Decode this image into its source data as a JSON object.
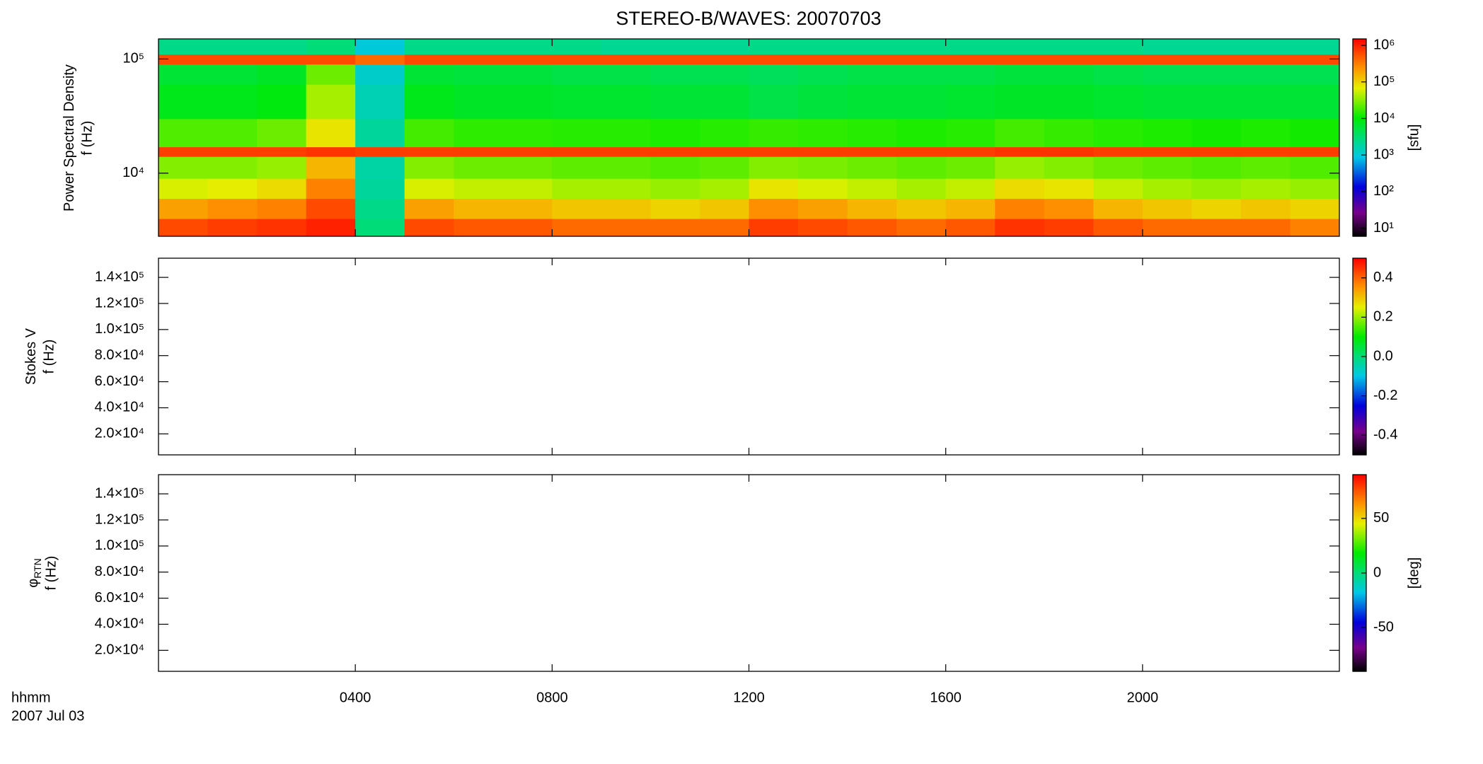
{
  "chart_data": [
    {
      "type": "heatmap",
      "title": "STEREO-B/WAVES: 20070703",
      "ylabel": "Power Spectral Density",
      "ylabel2": "f (Hz)",
      "zlabel": "[sfu]",
      "colormap": "rainbow",
      "ylog": true,
      "zlog": true,
      "xlim": [
        0,
        24
      ],
      "xticks": [
        4,
        8,
        12,
        16,
        20
      ],
      "ylim": [
        2800,
        150000
      ],
      "yticks": [
        {
          "value": 10000,
          "label": "10⁴"
        },
        {
          "value": 100000,
          "label": "10⁵"
        }
      ],
      "zlim": [
        6,
        1500000
      ],
      "zticks": [
        {
          "value": 10,
          "label": "10¹"
        },
        {
          "value": 100,
          "label": "10²"
        },
        {
          "value": 1000,
          "label": "10³"
        },
        {
          "value": 10000,
          "label": "10⁴"
        },
        {
          "value": 100000,
          "label": "10⁵"
        },
        {
          "value": 1000000,
          "label": "10⁶"
        }
      ],
      "xbins": [
        0,
        1,
        2,
        3,
        4,
        5,
        6,
        7,
        8,
        9,
        10,
        11,
        12,
        13,
        14,
        15,
        16,
        17,
        18,
        19,
        20,
        21,
        22,
        23,
        24
      ],
      "ybins": [
        2800,
        4000,
        6000,
        9000,
        14000,
        17000,
        30000,
        60000,
        90000,
        110000,
        150000
      ],
      "z": [
        [
          600000,
          700000,
          800000,
          1000000,
          3000,
          600000,
          500000,
          500000,
          400000,
          400000,
          400000,
          400000,
          700000,
          600000,
          500000,
          400000,
          500000,
          800000,
          700000,
          500000,
          400000,
          400000,
          400000,
          300000
        ],
        [
          200000,
          250000,
          300000,
          600000,
          2500,
          200000,
          150000,
          150000,
          120000,
          120000,
          100000,
          120000,
          250000,
          200000,
          150000,
          120000,
          150000,
          300000,
          250000,
          150000,
          120000,
          100000,
          120000,
          100000
        ],
        [
          60000,
          70000,
          90000,
          300000,
          2000,
          60000,
          50000,
          50000,
          40000,
          40000,
          35000,
          40000,
          80000,
          60000,
          50000,
          40000,
          50000,
          90000,
          80000,
          50000,
          40000,
          35000,
          40000,
          35000
        ],
        [
          30000,
          30000,
          35000,
          150000,
          1800,
          30000,
          25000,
          25000,
          22000,
          22000,
          20000,
          22000,
          30000,
          28000,
          25000,
          22000,
          25000,
          35000,
          30000,
          25000,
          22000,
          20000,
          22000,
          20000
        ],
        [
          700000,
          700000,
          700000,
          800000,
          700000,
          700000,
          700000,
          700000,
          700000,
          700000,
          700000,
          700000,
          700000,
          700000,
          700000,
          700000,
          700000,
          800000,
          800000,
          700000,
          700000,
          700000,
          700000,
          700000
        ],
        [
          20000,
          20000,
          25000,
          80000,
          2000,
          18000,
          15000,
          15000,
          14000,
          14000,
          13000,
          14000,
          16000,
          15000,
          14000,
          13000,
          14000,
          18000,
          16000,
          14000,
          13000,
          12000,
          13000,
          12000
        ],
        [
          8000,
          8000,
          9000,
          40000,
          1500,
          8000,
          7000,
          7000,
          6500,
          6500,
          6000,
          6000,
          5000,
          5500,
          6000,
          6000,
          6500,
          7000,
          7000,
          6500,
          6000,
          6000,
          6000,
          6000
        ],
        [
          6000,
          6000,
          7000,
          25000,
          1200,
          6000,
          5500,
          5500,
          5000,
          5000,
          4500,
          4500,
          4000,
          4500,
          5000,
          5000,
          5000,
          5500,
          5500,
          5000,
          4500,
          4500,
          4500,
          4500
        ],
        [
          600000,
          600000,
          600000,
          600000,
          400000,
          600000,
          600000,
          600000,
          600000,
          600000,
          600000,
          600000,
          600000,
          600000,
          600000,
          600000,
          600000,
          600000,
          600000,
          600000,
          600000,
          600000,
          600000,
          600000
        ],
        [
          2500,
          2500,
          2500,
          3000,
          1000,
          2500,
          2500,
          2500,
          2500,
          2200,
          2200,
          2200,
          2500,
          2500,
          2500,
          2500,
          2500,
          2500,
          2500,
          2500,
          2200,
          2200,
          2200,
          2200
        ]
      ]
    },
    {
      "type": "heatmap",
      "ylabel": "Stokes V",
      "ylabel2": "f (Hz)",
      "colormap": "rainbow",
      "xlim": [
        0,
        24
      ],
      "xticks": [
        4,
        8,
        12,
        16,
        20
      ],
      "ylim": [
        3900,
        154700
      ],
      "yticks": [
        {
          "value": 20000,
          "label": "2.0×10⁴"
        },
        {
          "value": 40000,
          "label": "4.0×10⁴"
        },
        {
          "value": 60000,
          "label": "6.0×10⁴"
        },
        {
          "value": 80000,
          "label": "8.0×10⁴"
        },
        {
          "value": 100000,
          "label": "1.0×10⁵"
        },
        {
          "value": 120000,
          "label": "1.2×10⁵"
        },
        {
          "value": 140000,
          "label": "1.4×10⁵"
        }
      ],
      "zlim": [
        -0.5,
        0.5
      ],
      "zticks": [
        -0.4,
        -0.2,
        {
          "value": 0,
          "label": "0.0"
        },
        0.2,
        0.4
      ]
    },
    {
      "type": "heatmap",
      "ylabel": "φ",
      "ylabel_subscript": "RTN",
      "ylabel2": "f (Hz)",
      "zlabel": "[deg]",
      "colormap": "rainbow",
      "xlabel": "hhmm",
      "date": "2007 Jul 03",
      "xlim": [
        0,
        24
      ],
      "xticks": [
        {
          "value": 4,
          "label": "0400"
        },
        {
          "value": 8,
          "label": "0800"
        },
        {
          "value": 12,
          "label": "1200"
        },
        {
          "value": 16,
          "label": "1600"
        },
        {
          "value": 20,
          "label": "2000"
        }
      ],
      "ylim": [
        3900,
        154700
      ],
      "yticks": [
        {
          "value": 20000,
          "label": "2.0×10⁴"
        },
        {
          "value": 40000,
          "label": "4.0×10⁴"
        },
        {
          "value": 60000,
          "label": "6.0×10⁴"
        },
        {
          "value": 80000,
          "label": "8.0×10⁴"
        },
        {
          "value": 100000,
          "label": "1.0×10⁵"
        },
        {
          "value": 120000,
          "label": "1.2×10⁵"
        },
        {
          "value": 140000,
          "label": "1.4×10⁵"
        }
      ],
      "zlim": [
        -90,
        90
      ],
      "zticks": [
        -50,
        0,
        50
      ]
    }
  ]
}
